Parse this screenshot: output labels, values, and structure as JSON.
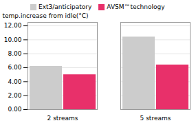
{
  "chart_data": {
    "type": "bar",
    "categories": [
      "2 streams",
      "5 streams"
    ],
    "series": [
      {
        "name": "Ext3/anticipatory",
        "color": "#cccccc",
        "values": [
          6.2,
          10.4
        ]
      },
      {
        "name": "AVSM™technology",
        "color": "#e8306a",
        "values": [
          5.0,
          6.4
        ]
      }
    ],
    "ylabel": "temp.increase from idle(°C)",
    "ylim": [
      0,
      12.5
    ],
    "yticks": [
      {
        "value": 0.0,
        "label": "0.00"
      },
      {
        "value": 2.0,
        "label": "2.00"
      },
      {
        "value": 4.0,
        "label": "4.00"
      },
      {
        "value": 6.0,
        "label": "6.00"
      },
      {
        "value": 8.0,
        "label": "8.00"
      },
      {
        "value": 10.0,
        "label": "10.00"
      },
      {
        "value": 12.0,
        "label": "12.00"
      }
    ],
    "grid": true,
    "legend": "upper left"
  }
}
